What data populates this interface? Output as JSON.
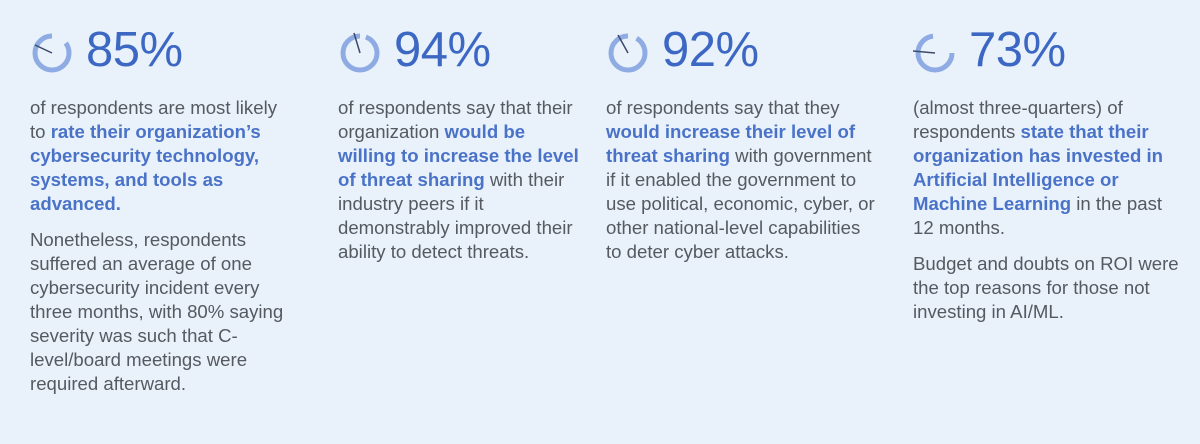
{
  "stats": [
    {
      "percent": "85%",
      "para1_a": "of respondents are most likely to ",
      "para1_hl": "rate their organization’s cybersecurity technology, systems, and tools as advanced.",
      "para1_b": "",
      "para2": "Nonetheless, respondents suffered an average of one cybersecurity incident every three months, with 80% saying severity was such that C-level/board meetings were required afterward."
    },
    {
      "percent": "94%",
      "para1_a": "of respondents say that their organization ",
      "para1_hl": "would be willing to increase the level of threat sharing",
      "para1_b": " with their industry peers if it demonstrably improved their ability to detect threats.",
      "para2": ""
    },
    {
      "percent": "92%",
      "para1_a": "of respondents say that they ",
      "para1_hl": "would increase their level of threat sharing",
      "para1_b": " with government if it enabled the government to use political, economic, cyber, or other national-level capabilities to deter cyber attacks.",
      "para2": ""
    },
    {
      "percent": "73%",
      "para1_a": "(almost three-quarters) of respondents ",
      "para1_hl": "state that their organization has invested in Artificial Intelligence or Machine Learning",
      "para1_b": " in the past 12 months.",
      "para2": "Budget and doubts on ROI were the top reasons for those not investing in AI/ML."
    }
  ],
  "colors": {
    "accent": "#3c68c4",
    "ring": "#8eace3",
    "background": "#e9f1fb",
    "text": "#555a60"
  }
}
